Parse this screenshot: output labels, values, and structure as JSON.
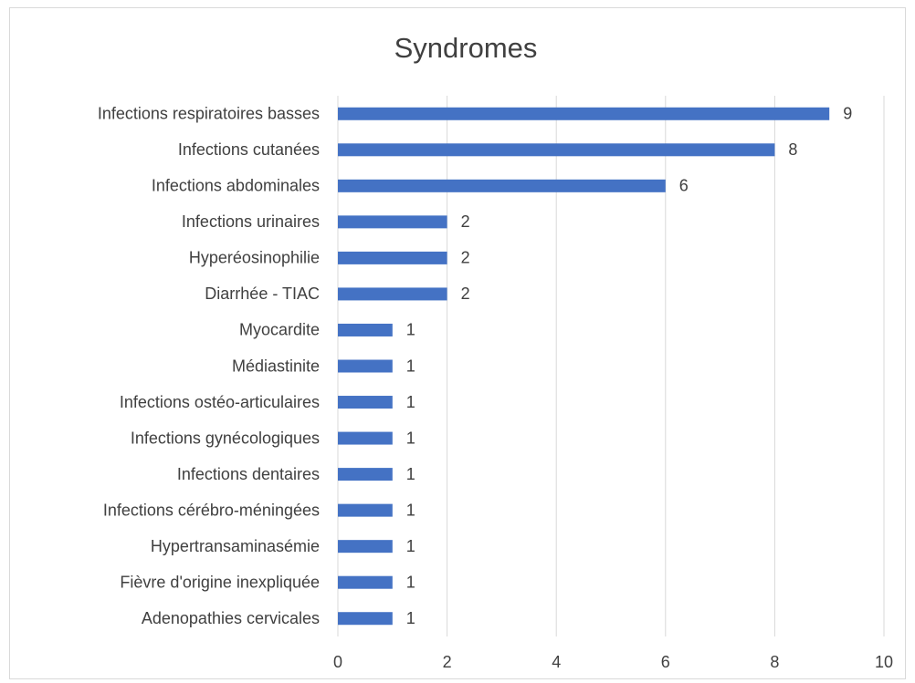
{
  "chart_data": {
    "type": "bar",
    "orientation": "horizontal",
    "title": "Syndromes",
    "categories": [
      "Infections respiratoires basses",
      "Infections cutanées",
      "Infections abdominales",
      "Infections urinaires",
      "Hyperéosinophilie",
      "Diarrhée - TIAC",
      "Myocardite",
      "Médiastinite",
      "Infections ostéo-articulaires",
      "Infections gynécologiques",
      "Infections dentaires",
      "Infections cérébro-méningées",
      "Hypertransaminasémie",
      "Fièvre d'origine inexpliquée",
      "Adenopathies cervicales"
    ],
    "values": [
      9,
      8,
      6,
      2,
      2,
      2,
      1,
      1,
      1,
      1,
      1,
      1,
      1,
      1,
      1
    ],
    "color": "#4472c4",
    "xlim": [
      0,
      10
    ],
    "xticks": [
      0,
      2,
      4,
      6,
      8,
      10
    ],
    "grid": true
  }
}
